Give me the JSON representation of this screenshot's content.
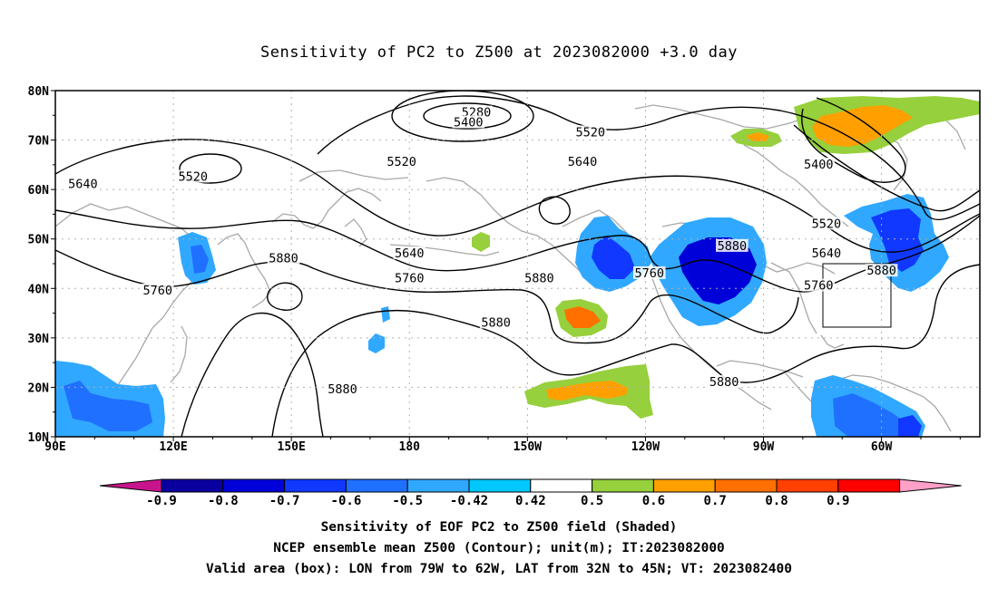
{
  "title": "Sensitivity of PC2 to Z500 at 2023082000 +3.0 day",
  "axes": {
    "lat_labels": [
      "80N",
      "70N",
      "60N",
      "50N",
      "40N",
      "30N",
      "20N",
      "10N"
    ],
    "lon_labels": [
      "90E",
      "120E",
      "150E",
      "180",
      "150W",
      "120W",
      "90W",
      "60W"
    ]
  },
  "contour_labels": [
    {
      "text": "5280",
      "lon": 197,
      "lat": 75.5
    },
    {
      "text": "5400",
      "lon": 195,
      "lat": 73.5
    },
    {
      "text": "5520",
      "lon": 226,
      "lat": 71.5
    },
    {
      "text": "5520",
      "lon": 178,
      "lat": 65.5
    },
    {
      "text": "5520",
      "lon": 125,
      "lat": 62.5
    },
    {
      "text": "5640",
      "lon": 97,
      "lat": 61.0
    },
    {
      "text": "5640",
      "lon": 224,
      "lat": 65.5
    },
    {
      "text": "5400",
      "lon": 284,
      "lat": 65.0
    },
    {
      "text": "5520",
      "lon": 286,
      "lat": 53.0
    },
    {
      "text": "5640",
      "lon": 286,
      "lat": 47.0
    },
    {
      "text": "5760",
      "lon": 284,
      "lat": 40.5
    },
    {
      "text": "5880",
      "lon": 300,
      "lat": 43.5
    },
    {
      "text": "5640",
      "lon": 180,
      "lat": 47.0
    },
    {
      "text": "5760",
      "lon": 180,
      "lat": 42.0
    },
    {
      "text": "5760",
      "lon": 241,
      "lat": 43.0
    },
    {
      "text": "5880",
      "lon": 148,
      "lat": 46.0
    },
    {
      "text": "5760",
      "lon": 116,
      "lat": 39.5
    },
    {
      "text": "5880",
      "lon": 213,
      "lat": 42.0
    },
    {
      "text": "5880",
      "lon": 262,
      "lat": 48.5
    },
    {
      "text": "5880",
      "lon": 202,
      "lat": 33.0
    },
    {
      "text": "5880",
      "lon": 163,
      "lat": 19.5
    },
    {
      "text": "5880",
      "lon": 260,
      "lat": 21.0
    }
  ],
  "colorbar": {
    "labels": [
      "-0.9",
      "-0.8",
      "-0.7",
      "-0.6",
      "-0.5",
      "-0.42",
      "0.42",
      "0.5",
      "0.6",
      "0.7",
      "0.8",
      "0.9"
    ],
    "colors": [
      "#0a00a0",
      "#0000d8",
      "#1038ff",
      "#2070ff",
      "#30a8ff",
      "#00c8ff",
      "#ffffff",
      "#96d03c",
      "#ffa000",
      "#ff7000",
      "#ff4000",
      "#ff0000"
    ],
    "low_end_color": "#c8148c",
    "high_end_color": "#ffa0c8"
  },
  "valid_box": {
    "lon_min": -79,
    "lon_max": -62,
    "lat_min": 32,
    "lat_max": 45
  },
  "captions": [
    "Sensitivity of EOF PC2 to Z500 field (Shaded)",
    "NCEP ensemble mean Z500 (Contour); unit(m); IT:2023082000",
    "Valid area (box): LON from 79W to 62W, LAT from 32N to 45N; VT: 2023082400"
  ]
}
